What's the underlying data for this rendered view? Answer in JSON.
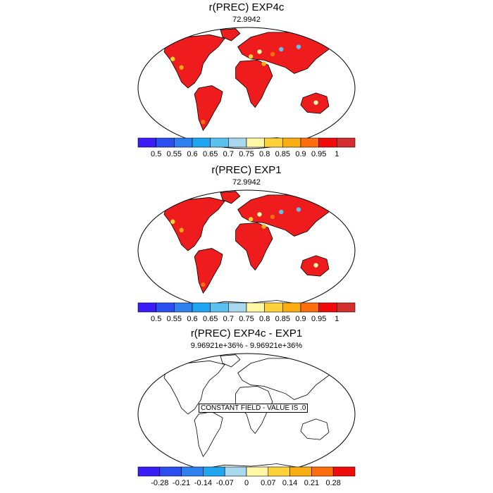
{
  "panels": [
    {
      "title": "r(PREC) EXP4c",
      "subtitle": "72.9942",
      "colorbar": {
        "labels": [
          "0.5",
          "0.55",
          "0.6",
          "0.65",
          "0.7",
          "0.75",
          "0.8",
          "0.85",
          "0.9",
          "0.95",
          "1"
        ],
        "colors": [
          "#3a1df7",
          "#2b4ef0",
          "#2f7fee",
          "#1ea6f2",
          "#5dc1f0",
          "#a9d8ee",
          "#fff7a6",
          "#ffd23a",
          "#f9ad12",
          "#ff6e0e",
          "#ef0c0b",
          "#d42f2f"
        ]
      },
      "field_fill": "#ee1c1c"
    },
    {
      "title": "r(PREC) EXP1",
      "subtitle": "72.9942",
      "colorbar": {
        "labels": [
          "0.5",
          "0.55",
          "0.6",
          "0.65",
          "0.7",
          "0.75",
          "0.8",
          "0.85",
          "0.9",
          "0.95",
          "1"
        ],
        "colors": [
          "#3a1df7",
          "#2b4ef0",
          "#2f7fee",
          "#1ea6f2",
          "#5dc1f0",
          "#a9d8ee",
          "#fff7a6",
          "#ffd23a",
          "#f9ad12",
          "#ff6e0e",
          "#ef0c0b",
          "#d42f2f"
        ]
      },
      "field_fill": "#ee1c1c"
    },
    {
      "title": "r(PREC) EXP4c - EXP1",
      "subtitle": "9.96921e+36% - 9.96921e+36%",
      "notice": "CONSTANT FIELD - VALUE IS .0",
      "colorbar": {
        "labels": [
          "-0.28",
          "-0.21",
          "-0.14",
          "-0.07",
          "0",
          "0.07",
          "0.14",
          "0.21",
          "0.28"
        ],
        "colors": [
          "#3a1df7",
          "#2b4ef0",
          "#2f7fee",
          "#1ea6f2",
          "#a9d8ee",
          "#fff7a6",
          "#ffd23a",
          "#f9ad12",
          "#ff6e0e",
          "#ef0c0b"
        ]
      },
      "field_fill": "none"
    }
  ]
}
